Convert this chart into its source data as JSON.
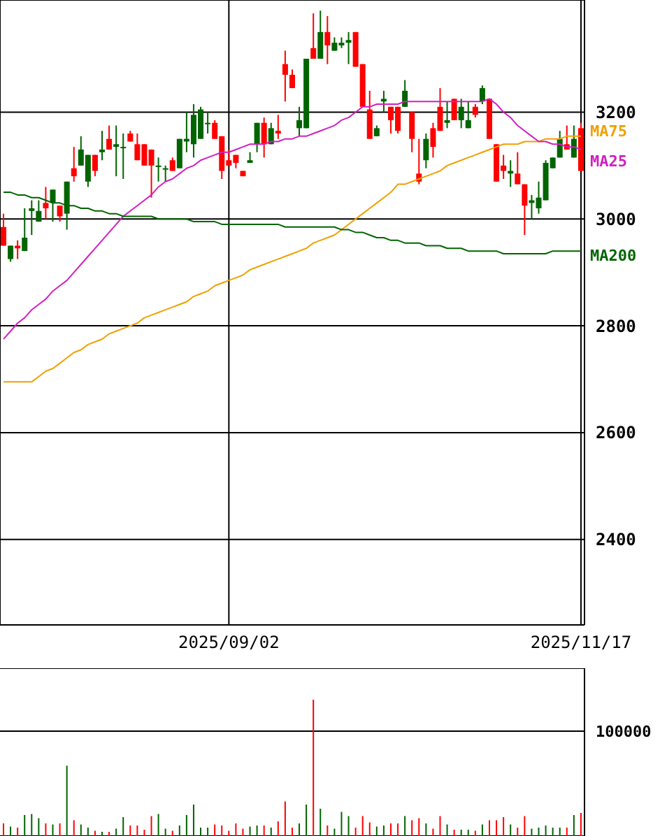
{
  "chart_data": [
    {
      "type": "candlestick",
      "categories": [
        null,
        null,
        null,
        null,
        null,
        null,
        null,
        null,
        null,
        null,
        null,
        null,
        null,
        null,
        null,
        null,
        null,
        null,
        null,
        null,
        null,
        null,
        null,
        null,
        null,
        null,
        null,
        null,
        null,
        null,
        null,
        null,
        "2025/09/02",
        null,
        null,
        null,
        null,
        null,
        null,
        null,
        null,
        null,
        null,
        null,
        null,
        null,
        null,
        null,
        null,
        null,
        null,
        null,
        null,
        null,
        null,
        null,
        null,
        null,
        null,
        null,
        null,
        null,
        null,
        null,
        null,
        null,
        null,
        null,
        null,
        null,
        null,
        null,
        null,
        null,
        null,
        null,
        null,
        null,
        null,
        null,
        null,
        null,
        "2025/11/17"
      ],
      "ohlc": [
        [
          2985,
          3010,
          2950,
          2950
        ],
        [
          2925,
          2950,
          2920,
          2950
        ],
        [
          2950,
          2960,
          2925,
          2945
        ],
        [
          2940,
          3020,
          2940,
          2965
        ],
        [
          3015,
          3035,
          2970,
          3020
        ],
        [
          2995,
          3035,
          2995,
          3015
        ],
        [
          3030,
          3060,
          3000,
          3020
        ],
        [
          3030,
          3055,
          2995,
          3055
        ],
        [
          3025,
          3025,
          2995,
          3005
        ],
        [
          3010,
          3070,
          2980,
          3070
        ],
        [
          3095,
          3135,
          3070,
          3080
        ],
        [
          3100,
          3155,
          3100,
          3130
        ],
        [
          3070,
          3120,
          3060,
          3120
        ],
        [
          3120,
          3120,
          3080,
          3090
        ],
        [
          3125,
          3165,
          3110,
          3130
        ],
        [
          3150,
          3175,
          3130,
          3130
        ],
        [
          3135,
          3175,
          3080,
          3140
        ],
        [
          3135,
          3160,
          3075,
          3135
        ],
        [
          3160,
          3165,
          3145,
          3145
        ],
        [
          3140,
          3160,
          3110,
          3110
        ],
        [
          3140,
          3140,
          3100,
          3100
        ],
        [
          3130,
          3130,
          3040,
          3100
        ],
        [
          3100,
          3115,
          3070,
          3100
        ],
        [
          3095,
          3100,
          3070,
          3095
        ],
        [
          3110,
          3115,
          3090,
          3090
        ],
        [
          3095,
          3150,
          3095,
          3150
        ],
        [
          3145,
          3200,
          3125,
          3150
        ],
        [
          3140,
          3215,
          3115,
          3195
        ],
        [
          3150,
          3210,
          3150,
          3205
        ],
        [
          3180,
          3200,
          3160,
          3180
        ],
        [
          3180,
          3185,
          3150,
          3150
        ],
        [
          3155,
          3155,
          3075,
          3090
        ],
        [
          3110,
          3130,
          3100,
          3100
        ],
        [
          3120,
          3120,
          3095,
          3105
        ],
        [
          3090,
          3090,
          3080,
          3080
        ],
        [
          3105,
          3125,
          3105,
          3110
        ],
        [
          3140,
          3180,
          3125,
          3180
        ],
        [
          3180,
          3190,
          3115,
          3140
        ],
        [
          3140,
          3180,
          3140,
          3170
        ],
        [
          3165,
          3195,
          3150,
          3160
        ],
        [
          3290,
          3315,
          3220,
          3270
        ],
        [
          3270,
          3280,
          3245,
          3245
        ],
        [
          3170,
          3210,
          3155,
          3185
        ],
        [
          3170,
          3300,
          3170,
          3300
        ],
        [
          3320,
          3385,
          3300,
          3300
        ],
        [
          3300,
          3390,
          3300,
          3350
        ],
        [
          3350,
          3380,
          3290,
          3325
        ],
        [
          3315,
          3340,
          3315,
          3330
        ],
        [
          3325,
          3340,
          3320,
          3330
        ],
        [
          3330,
          3350,
          3290,
          3335
        ],
        [
          3350,
          3350,
          3285,
          3285
        ],
        [
          3290,
          3290,
          3210,
          3210
        ],
        [
          3205,
          3240,
          3150,
          3150
        ],
        [
          3155,
          3175,
          3155,
          3170
        ],
        [
          3220,
          3240,
          3200,
          3225
        ],
        [
          3210,
          3210,
          3160,
          3185
        ],
        [
          3210,
          3210,
          3160,
          3165
        ],
        [
          3210,
          3260,
          3210,
          3240
        ],
        [
          3200,
          3200,
          3125,
          3150
        ],
        [
          3085,
          3150,
          3065,
          3070
        ],
        [
          3110,
          3160,
          3095,
          3150
        ],
        [
          3170,
          3180,
          3115,
          3135
        ],
        [
          3210,
          3245,
          3165,
          3165
        ],
        [
          3180,
          3220,
          3170,
          3185
        ],
        [
          3225,
          3225,
          3185,
          3185
        ],
        [
          3185,
          3225,
          3170,
          3210
        ],
        [
          3170,
          3220,
          3170,
          3185
        ],
        [
          3210,
          3215,
          3190,
          3195
        ],
        [
          3220,
          3250,
          3215,
          3245
        ],
        [
          3225,
          3225,
          3150,
          3150
        ],
        [
          3140,
          3140,
          3070,
          3070
        ],
        [
          3100,
          3120,
          3075,
          3090
        ],
        [
          3085,
          3110,
          3060,
          3090
        ],
        [
          3085,
          3125,
          3065,
          3065
        ],
        [
          3065,
          3065,
          2970,
          3025
        ],
        [
          3030,
          3045,
          3000,
          3035
        ],
        [
          3020,
          3070,
          3010,
          3040
        ],
        [
          3035,
          3110,
          3035,
          3105
        ],
        [
          3095,
          3115,
          3095,
          3115
        ],
        [
          3115,
          3165,
          3115,
          3150
        ],
        [
          3140,
          3175,
          3130,
          3130
        ],
        [
          3115,
          3175,
          3115,
          3150
        ],
        [
          3170,
          3180,
          3090,
          3090
        ]
      ],
      "colors": [
        "#ff0000",
        "#006400",
        "#ff0000",
        "#006400",
        "#006400",
        "#006400",
        "#ff0000",
        "#006400",
        "#ff0000",
        "#006400",
        "#ff0000",
        "#006400",
        "#006400",
        "#ff0000",
        "#006400",
        "#ff0000",
        "#006400",
        "#006400",
        "#ff0000",
        "#ff0000",
        "#ff0000",
        "#ff0000",
        "#006400",
        "#006400",
        "#ff0000",
        "#006400",
        "#006400",
        "#006400",
        "#006400",
        "#006400",
        "#ff0000",
        "#ff0000",
        "#ff0000",
        "#ff0000",
        "#ff0000",
        "#006400",
        "#006400",
        "#ff0000",
        "#006400",
        "#ff0000",
        "#ff0000",
        "#ff0000",
        "#006400",
        "#006400",
        "#ff0000",
        "#006400",
        "#ff0000",
        "#006400",
        "#006400",
        "#006400",
        "#ff0000",
        "#ff0000",
        "#ff0000",
        "#006400",
        "#006400",
        "#ff0000",
        "#ff0000",
        "#006400",
        "#ff0000",
        "#ff0000",
        "#006400",
        "#ff0000",
        "#ff0000",
        "#006400",
        "#ff0000",
        "#006400",
        "#006400",
        "#ff0000",
        "#006400",
        "#ff0000",
        "#ff0000",
        "#ff0000",
        "#006400",
        "#ff0000",
        "#ff0000",
        "#006400",
        "#006400",
        "#006400",
        "#006400",
        "#006400",
        "#ff0000",
        "#006400",
        "#ff0000"
      ],
      "series": [
        {
          "name": "MA75",
          "type": "line",
          "color": "#f0a000",
          "values": [
            2695,
            2695,
            2695,
            2695,
            2695,
            2705,
            2715,
            2720,
            2730,
            2740,
            2750,
            2755,
            2765,
            2770,
            2775,
            2785,
            2790,
            2795,
            2800,
            2805,
            2815,
            2820,
            2825,
            2830,
            2835,
            2840,
            2845,
            2855,
            2860,
            2865,
            2875,
            2880,
            2885,
            2890,
            2895,
            2905,
            2910,
            2915,
            2920,
            2925,
            2930,
            2935,
            2940,
            2945,
            2955,
            2960,
            2965,
            2970,
            2980,
            2990,
            3000,
            3010,
            3020,
            3030,
            3040,
            3050,
            3065,
            3065,
            3070,
            3075,
            3080,
            3085,
            3090,
            3100,
            3105,
            3110,
            3115,
            3120,
            3125,
            3130,
            3135,
            3140,
            3140,
            3140,
            3145,
            3145,
            3145,
            3150,
            3150,
            3150,
            3155,
            3155,
            3155
          ]
        },
        {
          "name": "MA25",
          "type": "line",
          "color": "#d020c0",
          "values": [
            2775,
            2790,
            2805,
            2815,
            2830,
            2840,
            2850,
            2865,
            2875,
            2885,
            2900,
            2915,
            2930,
            2945,
            2960,
            2975,
            2990,
            3005,
            3015,
            3025,
            3035,
            3045,
            3060,
            3070,
            3075,
            3085,
            3095,
            3100,
            3110,
            3115,
            3120,
            3125,
            3125,
            3130,
            3135,
            3140,
            3140,
            3140,
            3145,
            3145,
            3150,
            3150,
            3155,
            3155,
            3160,
            3165,
            3170,
            3175,
            3185,
            3190,
            3200,
            3210,
            3210,
            3215,
            3215,
            3215,
            3215,
            3220,
            3220,
            3220,
            3220,
            3220,
            3220,
            3220,
            3220,
            3220,
            3220,
            3220,
            3220,
            3225,
            3215,
            3200,
            3190,
            3175,
            3165,
            3155,
            3145,
            3145,
            3140,
            3140,
            3135,
            3135,
            3130
          ]
        },
        {
          "name": "MA200",
          "type": "line",
          "color": "#006400",
          "values": [
            3050,
            3050,
            3045,
            3045,
            3040,
            3040,
            3035,
            3030,
            3030,
            3025,
            3025,
            3020,
            3020,
            3015,
            3015,
            3010,
            3010,
            3005,
            3005,
            3005,
            3005,
            3005,
            3000,
            3000,
            3000,
            3000,
            3000,
            2995,
            2995,
            2995,
            2995,
            2990,
            2990,
            2990,
            2990,
            2990,
            2990,
            2990,
            2990,
            2990,
            2985,
            2985,
            2985,
            2985,
            2985,
            2985,
            2985,
            2985,
            2980,
            2980,
            2975,
            2975,
            2970,
            2965,
            2965,
            2960,
            2960,
            2955,
            2955,
            2955,
            2950,
            2950,
            2950,
            2945,
            2945,
            2945,
            2940,
            2940,
            2940,
            2940,
            2940,
            2935,
            2935,
            2935,
            2935,
            2935,
            2935,
            2935,
            2940,
            2940,
            2940,
            2940,
            2940
          ]
        }
      ],
      "ylim": [
        2240,
        3410
      ],
      "yticks": [
        2400,
        2600,
        2800,
        3000,
        3200
      ],
      "grid": true
    },
    {
      "type": "bar",
      "categories": [
        null,
        null,
        null,
        null,
        null,
        null,
        null,
        null,
        null,
        null,
        null,
        null,
        null,
        null,
        null,
        null,
        null,
        null,
        null,
        null,
        null,
        null,
        null,
        null,
        null,
        null,
        null,
        null,
        null,
        null,
        null,
        null,
        null,
        null,
        null,
        null,
        null,
        null,
        null,
        null,
        null,
        null,
        null,
        null,
        null,
        null,
        null,
        null,
        null,
        null,
        null,
        null,
        null,
        null,
        null,
        null,
        null,
        null,
        null,
        null,
        null,
        null,
        null,
        null,
        null,
        null,
        null,
        null,
        null,
        null,
        null,
        null,
        null,
        null,
        null,
        null,
        null,
        null,
        null,
        null,
        null,
        null,
        null
      ],
      "values": [
        12000,
        9000,
        8000,
        20000,
        21000,
        17000,
        12000,
        11000,
        12000,
        67000,
        15000,
        11000,
        8000,
        5000,
        4000,
        4000,
        7000,
        18000,
        10000,
        10000,
        6000,
        19000,
        21000,
        7000,
        5000,
        10000,
        20000,
        30000,
        8000,
        8000,
        11000,
        10000,
        5000,
        12000,
        7000,
        9000,
        10000,
        10000,
        8000,
        14000,
        33000,
        8000,
        12000,
        30000,
        130000,
        26000,
        10000,
        7000,
        23000,
        19000,
        8000,
        19000,
        13000,
        9000,
        10000,
        12000,
        12000,
        19000,
        15000,
        17000,
        12000,
        7000,
        19000,
        11000,
        6000,
        6000,
        6000,
        5000,
        11000,
        15000,
        15000,
        18000,
        11000,
        8000,
        19000,
        7000,
        8000,
        10000,
        8000,
        8000,
        8000,
        20000,
        22000
      ],
      "colors": [
        "#ff0000",
        "#006400",
        "#ff0000",
        "#006400",
        "#006400",
        "#006400",
        "#ff0000",
        "#006400",
        "#ff0000",
        "#006400",
        "#ff0000",
        "#006400",
        "#006400",
        "#ff0000",
        "#006400",
        "#ff0000",
        "#006400",
        "#006400",
        "#ff0000",
        "#ff0000",
        "#ff0000",
        "#ff0000",
        "#006400",
        "#006400",
        "#ff0000",
        "#006400",
        "#006400",
        "#006400",
        "#006400",
        "#006400",
        "#ff0000",
        "#ff0000",
        "#ff0000",
        "#ff0000",
        "#ff0000",
        "#006400",
        "#006400",
        "#ff0000",
        "#006400",
        "#ff0000",
        "#ff0000",
        "#ff0000",
        "#006400",
        "#006400",
        "#ff0000",
        "#006400",
        "#ff0000",
        "#006400",
        "#006400",
        "#006400",
        "#ff0000",
        "#ff0000",
        "#ff0000",
        "#006400",
        "#006400",
        "#ff0000",
        "#ff0000",
        "#006400",
        "#ff0000",
        "#ff0000",
        "#006400",
        "#ff0000",
        "#ff0000",
        "#006400",
        "#ff0000",
        "#006400",
        "#006400",
        "#ff0000",
        "#006400",
        "#ff0000",
        "#ff0000",
        "#ff0000",
        "#006400",
        "#ff0000",
        "#ff0000",
        "#006400",
        "#006400",
        "#006400",
        "#006400",
        "#006400",
        "#ff0000",
        "#006400",
        "#ff0000"
      ],
      "ylim": [
        0,
        160000
      ],
      "yticks": [
        {
          "value": 0,
          "label": null
        },
        100000
      ],
      "grid": "y",
      "tick_labels": "y"
    }
  ]
}
